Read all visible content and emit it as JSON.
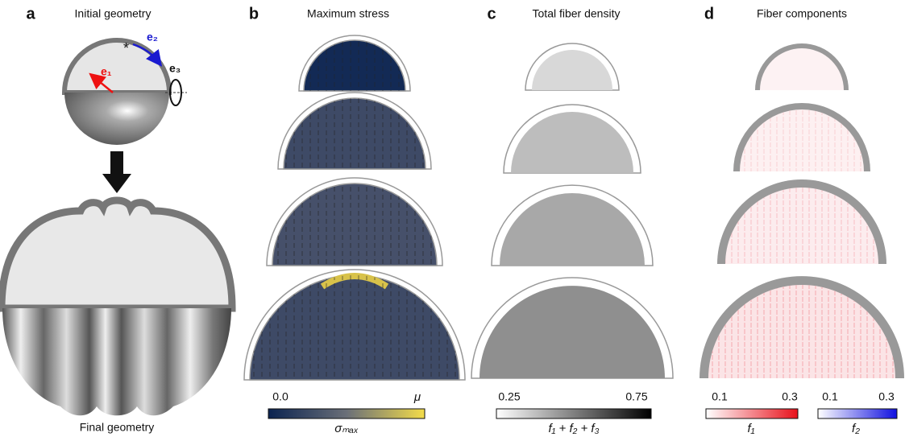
{
  "panels": [
    {
      "letter": "a",
      "title": "Initial geometry",
      "caption": "Final geometry",
      "axes": {
        "e1": "e₁",
        "e2": "e₂",
        "e3": "e₃",
        "marker": "*"
      }
    },
    {
      "letter": "b",
      "title": "Maximum stress",
      "colorbars": [
        {
          "min_label": "0.0",
          "max_label": "μ",
          "label": "σₘₐₓ"
        }
      ]
    },
    {
      "letter": "c",
      "title": "Total fiber density",
      "colorbars": [
        {
          "min_label": "0.25",
          "max_label": "0.75",
          "label": "f₁ + f₂ + f₃"
        }
      ]
    },
    {
      "letter": "d",
      "title": "Fiber components",
      "colorbars": [
        {
          "min_label": "0.1",
          "max_label": "0.3",
          "label": "f₁"
        },
        {
          "min_label": "0.1",
          "max_label": "0.3",
          "label": "f₂"
        }
      ]
    }
  ]
}
